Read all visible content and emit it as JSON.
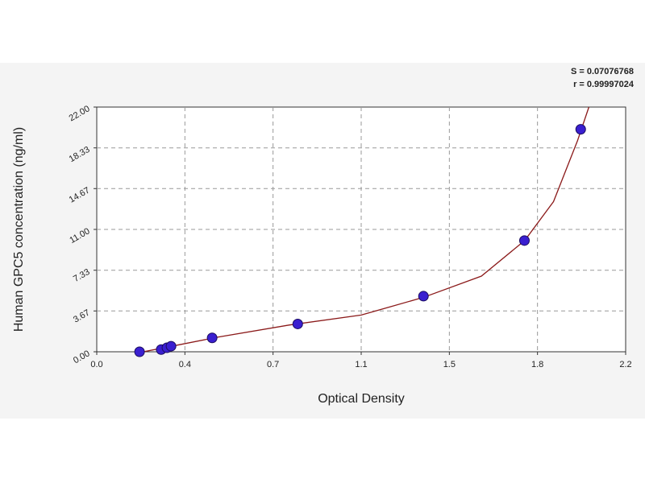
{
  "chart_data": {
    "type": "scatter",
    "x_label": "Optical Density",
    "y_label": "Human GPC5 concentration (ng/ml)",
    "annotations": [
      "S = 0.07076768",
      "r = 0.99997024"
    ],
    "x": [
      0.178,
      0.268,
      0.292,
      0.309,
      0.48,
      0.836,
      1.359,
      1.779,
      2.013
    ],
    "values": [
      0,
      0.2,
      0.36,
      0.5,
      1.25,
      2.5,
      5,
      10,
      20
    ],
    "color": "#3a1fd0",
    "curve": {
      "color": "#8b1a1a",
      "x": [
        0.17,
        0.3,
        0.5,
        0.8,
        1.1,
        1.36,
        1.6,
        1.78,
        1.9,
        2.0,
        2.047
      ],
      "y": [
        -0.1,
        0.45,
        1.3,
        2.4,
        3.3,
        4.9,
        6.8,
        10,
        13.5,
        19,
        22
      ]
    },
    "xlim": [
      0,
      2.2
    ],
    "xticks": [
      {
        "value": 0,
        "label": "0.0"
      },
      {
        "value": 0.3667,
        "label": "0.4"
      },
      {
        "value": 0.7333,
        "label": "0.7"
      },
      1.1,
      {
        "value": 1.4667,
        "label": "1.5"
      },
      {
        "value": 1.8333,
        "label": "1.8"
      },
      2.2
    ],
    "ylim": [
      0,
      22
    ],
    "yticks": [
      {
        "value": 0,
        "label": "0.00"
      },
      3.67,
      7.33,
      {
        "value": 11,
        "label": "11.00"
      },
      14.67,
      18.33,
      {
        "value": 22,
        "label": "22.00"
      }
    ],
    "grid": true
  }
}
